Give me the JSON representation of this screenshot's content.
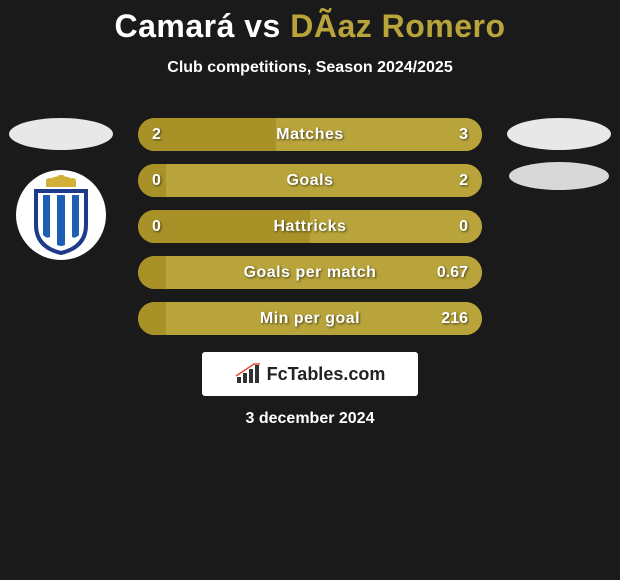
{
  "title": {
    "player1": "Camará",
    "vs": "vs",
    "player2": "DÃ­az Romero"
  },
  "subtitle": "Club competitions, Season 2024/2025",
  "colors": {
    "bar_left": "#a89228",
    "bar_right": "#b8a43a",
    "bar_right_alt": "#b8a43a",
    "bar_base": "#a89228",
    "title_p1": "#ffffff",
    "title_p2": "#b8a43a",
    "background": "#1a1a1a"
  },
  "stats": [
    {
      "label": "Matches",
      "left_value": "2",
      "right_value": "3",
      "left_num": 2,
      "right_num": 3,
      "left_pct": 40,
      "right_pct": 60
    },
    {
      "label": "Goals",
      "left_value": "0",
      "right_value": "2",
      "left_num": 0,
      "right_num": 2,
      "left_pct": 8,
      "right_pct": 92
    },
    {
      "label": "Hattricks",
      "left_value": "0",
      "right_value": "0",
      "left_num": 0,
      "right_num": 0,
      "left_pct": 50,
      "right_pct": 50
    },
    {
      "label": "Goals per match",
      "left_value": "",
      "right_value": "0.67",
      "left_num": 0,
      "right_num": 0.67,
      "left_pct": 8,
      "right_pct": 92
    },
    {
      "label": "Min per goal",
      "left_value": "",
      "right_value": "216",
      "left_num": 0,
      "right_num": 216,
      "left_pct": 8,
      "right_pct": 92
    }
  ],
  "brand": "FcTables.com",
  "date": "3 december 2024",
  "crest": {
    "crown_color": "#d4af37",
    "shield_border": "#1e3a8a",
    "shield_fill": "#ffffff",
    "stripe_color": "#1e5fb4"
  }
}
